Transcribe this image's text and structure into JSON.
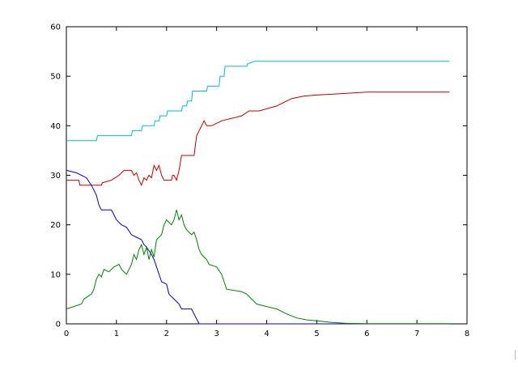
{
  "chart_data": {
    "type": "line",
    "title": "",
    "xlabel": "",
    "ylabel": "",
    "xlim": [
      0,
      8
    ],
    "ylim": [
      0,
      60
    ],
    "x_ticks": [
      0,
      1,
      2,
      3,
      4,
      5,
      6,
      7,
      8
    ],
    "y_ticks": [
      0,
      10,
      20,
      30,
      40,
      50,
      60
    ],
    "x_tick_labels": [
      "0",
      "1",
      "2",
      "3",
      "4",
      "5",
      "6",
      "7",
      "8"
    ],
    "y_tick_labels": [
      "0",
      "10",
      "20",
      "30",
      "40",
      "50",
      "60"
    ],
    "grid": false,
    "legend": "none",
    "series": [
      {
        "color": "#00c0c0",
        "points": [
          [
            0,
            37
          ],
          [
            0.6,
            37
          ],
          [
            0.62,
            38
          ],
          [
            1.3,
            38
          ],
          [
            1.32,
            39
          ],
          [
            1.5,
            39
          ],
          [
            1.52,
            40
          ],
          [
            1.75,
            40
          ],
          [
            1.77,
            41
          ],
          [
            1.85,
            41
          ],
          [
            1.87,
            42
          ],
          [
            2.0,
            42
          ],
          [
            2.02,
            43
          ],
          [
            2.3,
            43
          ],
          [
            2.32,
            44
          ],
          [
            2.4,
            44
          ],
          [
            2.42,
            45
          ],
          [
            2.5,
            45
          ],
          [
            2.52,
            47
          ],
          [
            2.8,
            47
          ],
          [
            2.82,
            48
          ],
          [
            3.05,
            48
          ],
          [
            3.07,
            50
          ],
          [
            3.15,
            50
          ],
          [
            3.17,
            52
          ],
          [
            3.6,
            52
          ],
          [
            3.62,
            52.5
          ],
          [
            3.75,
            53
          ],
          [
            7.65,
            53
          ]
        ]
      },
      {
        "color": "#c00000",
        "points": [
          [
            0,
            29
          ],
          [
            0.25,
            29
          ],
          [
            0.27,
            28
          ],
          [
            0.7,
            28
          ],
          [
            0.72,
            28.5
          ],
          [
            0.9,
            29
          ],
          [
            1.05,
            30
          ],
          [
            1.15,
            31
          ],
          [
            1.3,
            31
          ],
          [
            1.35,
            30
          ],
          [
            1.4,
            30.5
          ],
          [
            1.45,
            29
          ],
          [
            1.5,
            28
          ],
          [
            1.55,
            29.5
          ],
          [
            1.6,
            29
          ],
          [
            1.65,
            30
          ],
          [
            1.7,
            29.5
          ],
          [
            1.75,
            32
          ],
          [
            1.8,
            31
          ],
          [
            1.85,
            32
          ],
          [
            1.9,
            30
          ],
          [
            1.95,
            29
          ],
          [
            2.1,
            29
          ],
          [
            2.12,
            30
          ],
          [
            2.15,
            30
          ],
          [
            2.2,
            29
          ],
          [
            2.25,
            31
          ],
          [
            2.3,
            34
          ],
          [
            2.55,
            34
          ],
          [
            2.6,
            38
          ],
          [
            2.7,
            40
          ],
          [
            2.75,
            41
          ],
          [
            2.8,
            40
          ],
          [
            2.9,
            40
          ],
          [
            3.0,
            40.5
          ],
          [
            3.1,
            41
          ],
          [
            3.5,
            42
          ],
          [
            3.65,
            43
          ],
          [
            3.85,
            43
          ],
          [
            4.2,
            44
          ],
          [
            4.5,
            45.5
          ],
          [
            4.75,
            46
          ],
          [
            5.0,
            46.2
          ],
          [
            5.5,
            46.5
          ],
          [
            6.0,
            46.8
          ],
          [
            7.65,
            46.8
          ]
        ]
      },
      {
        "color": "#0000c0",
        "points": [
          [
            0,
            31
          ],
          [
            0.2,
            30.5
          ],
          [
            0.4,
            29.5
          ],
          [
            0.5,
            28
          ],
          [
            0.6,
            26
          ],
          [
            0.65,
            24
          ],
          [
            0.7,
            23
          ],
          [
            0.9,
            23
          ],
          [
            0.95,
            22
          ],
          [
            1.0,
            21
          ],
          [
            1.1,
            20
          ],
          [
            1.2,
            19.5
          ],
          [
            1.3,
            18
          ],
          [
            1.4,
            17.5
          ],
          [
            1.5,
            17
          ],
          [
            1.55,
            16
          ],
          [
            1.6,
            15.5
          ],
          [
            1.7,
            14
          ],
          [
            1.75,
            13
          ],
          [
            1.8,
            11.5
          ],
          [
            1.85,
            10
          ],
          [
            1.9,
            8.5
          ],
          [
            2.0,
            8
          ],
          [
            2.05,
            6
          ],
          [
            2.15,
            5
          ],
          [
            2.25,
            4
          ],
          [
            2.3,
            3
          ],
          [
            2.5,
            3
          ],
          [
            2.55,
            2
          ],
          [
            2.6,
            1
          ],
          [
            2.65,
            0
          ],
          [
            7.65,
            0
          ]
        ]
      },
      {
        "color": "#008000",
        "points": [
          [
            0,
            3
          ],
          [
            0.15,
            3.5
          ],
          [
            0.3,
            4
          ],
          [
            0.35,
            5
          ],
          [
            0.5,
            6
          ],
          [
            0.55,
            7
          ],
          [
            0.6,
            9
          ],
          [
            0.65,
            10
          ],
          [
            0.7,
            9.5
          ],
          [
            0.75,
            11
          ],
          [
            0.85,
            10.5
          ],
          [
            0.95,
            11.5
          ],
          [
            1.05,
            12
          ],
          [
            1.1,
            11
          ],
          [
            1.2,
            10
          ],
          [
            1.3,
            12
          ],
          [
            1.35,
            14
          ],
          [
            1.4,
            13
          ],
          [
            1.45,
            15
          ],
          [
            1.5,
            16
          ],
          [
            1.55,
            14
          ],
          [
            1.6,
            15.5
          ],
          [
            1.65,
            13
          ],
          [
            1.7,
            15
          ],
          [
            1.75,
            13.5
          ],
          [
            1.8,
            17
          ],
          [
            1.85,
            17.5
          ],
          [
            1.9,
            18
          ],
          [
            1.95,
            20
          ],
          [
            2.0,
            21
          ],
          [
            2.05,
            20.5
          ],
          [
            2.1,
            20
          ],
          [
            2.15,
            21
          ],
          [
            2.2,
            23
          ],
          [
            2.25,
            21
          ],
          [
            2.3,
            22
          ],
          [
            2.35,
            20
          ],
          [
            2.4,
            19
          ],
          [
            2.5,
            18
          ],
          [
            2.55,
            18.5
          ],
          [
            2.6,
            17
          ],
          [
            2.65,
            15
          ],
          [
            2.7,
            14
          ],
          [
            2.8,
            13
          ],
          [
            2.85,
            12
          ],
          [
            3.0,
            11.5
          ],
          [
            3.1,
            10
          ],
          [
            3.2,
            7
          ],
          [
            3.5,
            6.5
          ],
          [
            3.6,
            6
          ],
          [
            3.7,
            5
          ],
          [
            3.8,
            4
          ],
          [
            4.0,
            3.5
          ],
          [
            4.2,
            3
          ],
          [
            4.4,
            2
          ],
          [
            4.6,
            1.2
          ],
          [
            4.8,
            0.8
          ],
          [
            5.0,
            0.6
          ],
          [
            5.3,
            0.3
          ],
          [
            5.6,
            0.1
          ],
          [
            6.0,
            0.05
          ],
          [
            7.65,
            0.05
          ]
        ]
      }
    ]
  }
}
